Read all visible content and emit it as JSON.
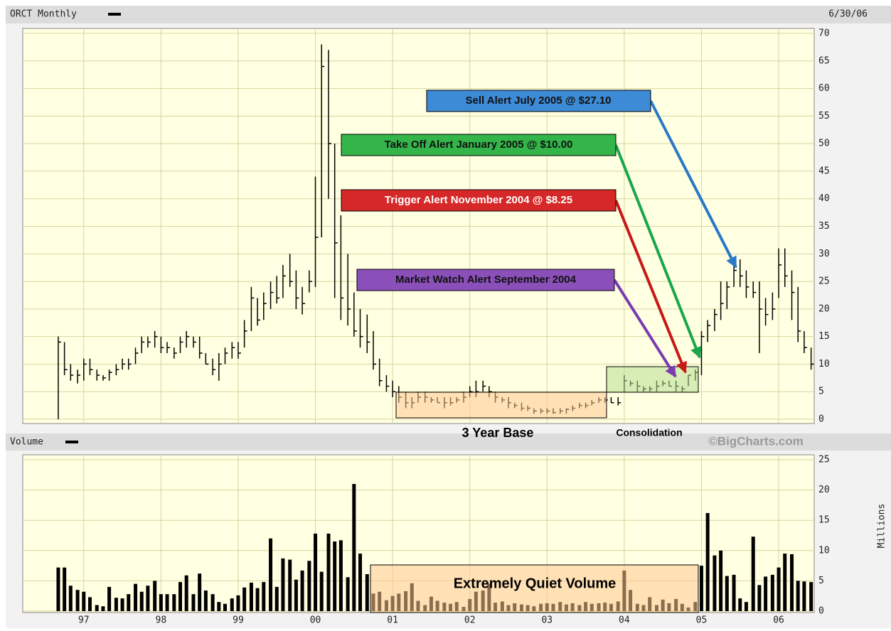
{
  "chart_data": [
    {
      "type": "hlc",
      "title": "ORCT Monthly",
      "subtitle": "6/30/06",
      "color": "#000000",
      "x": [
        1996.67,
        1996.75,
        1996.83,
        1996.92,
        1997.0,
        1997.08,
        1997.17,
        1997.25,
        1997.33,
        1997.42,
        1997.5,
        1997.58,
        1997.67,
        1997.75,
        1997.83,
        1997.92,
        1998.0,
        1998.08,
        1998.17,
        1998.25,
        1998.33,
        1998.42,
        1998.5,
        1998.58,
        1998.67,
        1998.75,
        1998.83,
        1998.92,
        1999.0,
        1999.08,
        1999.17,
        1999.25,
        1999.33,
        1999.42,
        1999.5,
        1999.58,
        1999.67,
        1999.75,
        1999.83,
        1999.92,
        2000.0,
        2000.08,
        2000.17,
        2000.25,
        2000.33,
        2000.42,
        2000.5,
        2000.58,
        2000.67,
        2000.75,
        2000.83,
        2000.92,
        2001.0,
        2001.08,
        2001.17,
        2001.25,
        2001.33,
        2001.42,
        2001.5,
        2001.58,
        2001.67,
        2001.75,
        2001.83,
        2001.92,
        2002.0,
        2002.08,
        2002.17,
        2002.25,
        2002.33,
        2002.42,
        2002.5,
        2002.58,
        2002.67,
        2002.75,
        2002.83,
        2002.92,
        2003.0,
        2003.08,
        2003.17,
        2003.25,
        2003.33,
        2003.42,
        2003.5,
        2003.58,
        2003.67,
        2003.75,
        2003.83,
        2003.92,
        2004.0,
        2004.08,
        2004.17,
        2004.25,
        2004.33,
        2004.42,
        2004.5,
        2004.58,
        2004.67,
        2004.75,
        2004.83,
        2004.92,
        2005.0,
        2005.08,
        2005.17,
        2005.25,
        2005.33,
        2005.42,
        2005.5,
        2005.58,
        2005.67,
        2005.75,
        2005.83,
        2005.92,
        2006.0,
        2006.08,
        2006.17,
        2006.25,
        2006.33,
        2006.42
      ],
      "high": [
        15,
        14,
        10,
        9,
        11,
        11,
        9,
        8,
        9,
        10,
        11,
        11,
        13,
        15,
        15,
        16,
        15,
        14,
        13,
        15,
        16,
        15,
        15,
        12,
        11,
        12,
        13,
        14,
        14,
        18,
        24,
        22,
        23,
        25,
        26,
        28,
        30,
        27,
        24,
        27,
        44,
        68,
        67,
        50,
        37,
        30,
        23,
        20,
        19,
        16,
        11,
        8,
        7,
        6,
        5,
        4,
        5,
        5,
        4,
        4,
        4,
        4,
        4,
        5,
        6,
        7,
        7,
        6,
        5,
        4,
        4,
        3,
        3,
        2.5,
        2,
        2,
        2,
        2,
        2,
        2,
        2.5,
        3,
        3,
        3.5,
        4,
        4,
        4,
        4,
        8,
        7,
        7,
        6,
        6,
        7,
        7,
        7,
        7,
        6,
        8,
        9,
        16,
        18,
        20,
        25,
        25,
        28,
        29,
        27,
        25,
        25,
        22,
        23,
        31,
        31,
        27,
        24,
        16,
        13
      ],
      "low": [
        0,
        8,
        7,
        6.5,
        7,
        8,
        7,
        7,
        7,
        8,
        9,
        9,
        10,
        12,
        13,
        13,
        12,
        12,
        11,
        12,
        13,
        13,
        11,
        10,
        8,
        7,
        10,
        11,
        11,
        13,
        16,
        17,
        18,
        20,
        21,
        22,
        24,
        20,
        19,
        23,
        24,
        33,
        40,
        22,
        18,
        17,
        15,
        13,
        12,
        9,
        6,
        5,
        4,
        3,
        2,
        2,
        3,
        3,
        3,
        3,
        2,
        2.5,
        3,
        3,
        4,
        4,
        5,
        4,
        3,
        3,
        2,
        2,
        1.5,
        1.5,
        1,
        1,
        1,
        1,
        1,
        1,
        1.5,
        2,
        2,
        2.5,
        3,
        3,
        3,
        2.5,
        5,
        6,
        5,
        5,
        5,
        5,
        6,
        6,
        5,
        5,
        6,
        7,
        8,
        14,
        16,
        18,
        20,
        24,
        24,
        22,
        22,
        12,
        17,
        18,
        22,
        24,
        18,
        14,
        12,
        9
      ],
      "close": [
        14,
        9,
        8,
        8,
        10,
        9,
        8,
        7.5,
        8.5,
        9,
        10,
        10,
        12,
        14,
        14,
        15,
        13,
        13,
        12,
        14,
        15,
        14,
        12,
        10,
        9,
        10,
        12,
        13,
        12,
        16,
        22,
        18,
        21,
        23,
        22,
        26,
        25,
        22,
        21,
        25,
        33,
        64,
        50,
        32,
        22,
        20,
        16,
        15,
        14,
        10,
        7,
        6,
        5,
        4,
        3,
        3,
        4,
        4,
        3.5,
        3,
        3,
        3,
        3.5,
        4,
        5,
        5,
        6,
        5,
        4,
        3.5,
        3,
        2.5,
        2,
        2,
        1.5,
        1.5,
        1.5,
        1.2,
        1.5,
        1.8,
        2,
        2.5,
        2.5,
        3,
        3.5,
        3.5,
        3,
        3,
        7,
        6.5,
        6,
        5.5,
        5.5,
        6,
        6.5,
        6,
        6,
        5.5,
        8,
        8.5,
        15,
        17,
        19,
        21,
        24,
        27,
        26,
        24,
        23,
        20,
        19,
        20,
        28,
        26,
        23,
        16,
        13,
        10
      ],
      "xlim": [
        1996.21,
        2006.46
      ],
      "xticks": [
        {
          "value": 1997,
          "label": "97"
        },
        {
          "value": 1998,
          "label": "98"
        },
        {
          "value": 1999,
          "label": "99"
        },
        {
          "value": 2000,
          "label": "00"
        },
        {
          "value": 2001,
          "label": "01"
        },
        {
          "value": 2002,
          "label": "02"
        },
        {
          "value": 2003,
          "label": "03"
        },
        {
          "value": 2004,
          "label": "04"
        },
        {
          "value": 2005,
          "label": "05"
        },
        {
          "value": 2006,
          "label": "06"
        }
      ],
      "ylim": [
        0,
        70
      ],
      "yticks": [
        0,
        5,
        10,
        15,
        20,
        25,
        30,
        35,
        40,
        45,
        50,
        55,
        60,
        65,
        70
      ],
      "grid": true,
      "annotations": [
        "Sell Alert July 2005 @ $27.10",
        "Take Off Alert January 2005 @ $10.00",
        "Trigger Alert November 2004 @ $8.25",
        "Market Watch Alert September 2004",
        "3 Year Base",
        "Consolidation",
        "©BigCharts.com"
      ]
    },
    {
      "type": "bar",
      "title": "Volume",
      "y_label": "Millions",
      "color": "#000000",
      "values": [
        7.2,
        7.2,
        4.2,
        3.5,
        3.2,
        2.3,
        1.0,
        0.8,
        4.0,
        2.2,
        2.1,
        2.8,
        4.5,
        3.2,
        4.2,
        5.0,
        2.8,
        2.8,
        2.8,
        4.8,
        5.9,
        2.8,
        6.2,
        3.4,
        2.8,
        1.5,
        1.2,
        2.1,
        2.6,
        3.9,
        4.7,
        3.8,
        4.8,
        12.0,
        4.0,
        8.7,
        8.5,
        5.2,
        6.7,
        8.3,
        12.8,
        6.5,
        12.8,
        11.5,
        11.7,
        5.6,
        21.0,
        9.5,
        6.1,
        2.9,
        3.2,
        1.8,
        2.5,
        2.9,
        3.3,
        4.6,
        1.7,
        1.0,
        2.4,
        1.7,
        1.4,
        1.2,
        1.5,
        0.7,
        2.0,
        3.2,
        3.4,
        4.5,
        1.4,
        1.6,
        1.0,
        1.3,
        1.1,
        1.0,
        0.8,
        1.2,
        1.3,
        1.2,
        1.5,
        1.1,
        1.3,
        1.0,
        1.5,
        1.2,
        1.3,
        1.4,
        1.2,
        1.6,
        6.7,
        3.5,
        1.2,
        1.0,
        2.3,
        1.0,
        1.9,
        1.3,
        2.0,
        1.2,
        0.6,
        1.5,
        7.5,
        16.2,
        9.2,
        10.0,
        5.8,
        6.0,
        2.1,
        1.5,
        12.3,
        4.3,
        5.7,
        6.0,
        7.2,
        9.5,
        9.4,
        5.0,
        4.9,
        4.8
      ],
      "ylim": [
        0,
        25
      ],
      "yticks": [
        0,
        5,
        10,
        15,
        20,
        25
      ],
      "grid": true,
      "annotations": [
        "Extremely Quiet Volume"
      ]
    }
  ]
}
